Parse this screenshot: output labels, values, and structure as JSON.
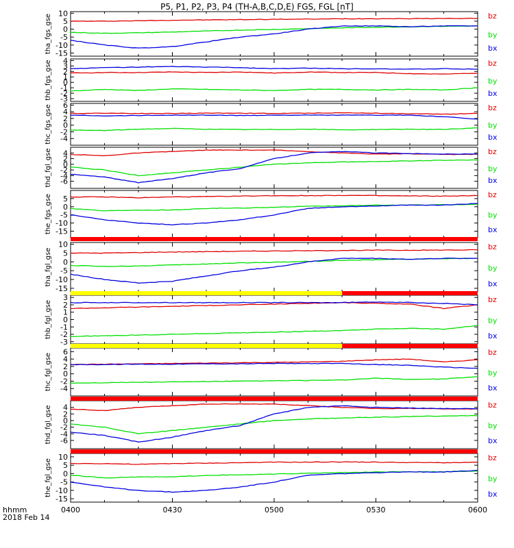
{
  "title": "P5, P1, P2, P3, P4 (TH-A,B,C,D,E) FGS, FGL [nT]",
  "x_axis": {
    "ticks": [
      "0400",
      "0430",
      "0500",
      "0530",
      "0600"
    ],
    "label_line1": "hhmm",
    "label_line2": "2018 Feb 14"
  },
  "colors": {
    "bz": "#e00000",
    "by": "#00e000",
    "bx": "#0000e0",
    "yellow": "#ffff00",
    "red": "#ff0000"
  },
  "chart_data": [
    {
      "type": "line",
      "ylabel": "tha_fgs_gse",
      "ylim": [
        -17,
        11
      ],
      "yticks": [
        "10",
        "5",
        "0",
        "-5",
        "-10",
        "-15"
      ],
      "legend": [
        "bz",
        "by",
        "bx"
      ],
      "x": [
        0,
        10,
        20,
        30,
        40,
        50,
        60,
        70,
        80,
        90,
        100,
        110,
        120
      ],
      "series": [
        {
          "name": "bz",
          "values": [
            5,
            5,
            5.3,
            5.6,
            5.8,
            6,
            6.2,
            6.3,
            6.5,
            6.6,
            6.6,
            6.7,
            6.8
          ]
        },
        {
          "name": "by",
          "values": [
            -2,
            -2.6,
            -2.3,
            -1.8,
            -1.2,
            -0.6,
            -0.2,
            0.3,
            0.8,
            1.2,
            1.5,
            1.8,
            2
          ]
        },
        {
          "name": "bx",
          "values": [
            -7,
            -10,
            -12,
            -11,
            -8,
            -5,
            -3,
            0,
            2,
            2,
            1.5,
            2,
            2
          ]
        }
      ]
    },
    {
      "type": "line",
      "ylabel": "thb_fgs_gse",
      "ylim": [
        -3.5,
        4.3
      ],
      "yticks": [
        "4",
        "3",
        "2",
        "1",
        "0",
        "-1",
        "-2",
        "-3"
      ],
      "legend": [
        "bz",
        "by",
        "bx"
      ],
      "x": [
        0,
        10,
        20,
        30,
        40,
        50,
        60,
        70,
        80,
        90,
        100,
        110,
        120
      ],
      "series": [
        {
          "name": "bz",
          "values": [
            1.7,
            1.8,
            1.8,
            1.9,
            1.8,
            1.9,
            1.7,
            1.9,
            1.8,
            1.8,
            1.6,
            1.5,
            1.7
          ]
        },
        {
          "name": "by",
          "values": [
            -1.6,
            -1.3,
            -1.5,
            -1.2,
            -1.3,
            -1.4,
            -1.5,
            -1.3,
            -1.3,
            -1.4,
            -1.3,
            -1.4,
            -1
          ]
        },
        {
          "name": "bx",
          "values": [
            2.5,
            2.7,
            2.8,
            2.9,
            2.8,
            2.7,
            2.5,
            2.6,
            2.5,
            2.5,
            2.4,
            2.5,
            2.4
          ]
        }
      ]
    },
    {
      "type": "line",
      "ylabel": "thc_fgs_gse",
      "ylim": [
        -6,
        6.5
      ],
      "yticks": [
        "6",
        "4",
        "2",
        "0",
        "-2",
        "-4"
      ],
      "legend": [
        "bz",
        "by",
        "bx"
      ],
      "x": [
        0,
        10,
        20,
        30,
        40,
        50,
        60,
        70,
        80,
        90,
        100,
        110,
        120
      ],
      "series": [
        {
          "name": "bz",
          "values": [
            3.5,
            3.6,
            3.5,
            3.5,
            3.6,
            3.6,
            3.5,
            3.6,
            3.7,
            3.6,
            3.4,
            3.3,
            3.5
          ]
        },
        {
          "name": "by",
          "values": [
            -1.5,
            -1.6,
            -1.2,
            -1.0,
            -1.2,
            -1.3,
            -1.3,
            -1.2,
            -1.4,
            -1.3,
            -1.2,
            -1.3,
            -0.8
          ]
        },
        {
          "name": "bx",
          "values": [
            3.0,
            2.8,
            2.9,
            3.0,
            3.0,
            2.9,
            3.0,
            3.0,
            3.0,
            3.0,
            3.0,
            2.5,
            1.8
          ]
        }
      ]
    },
    {
      "type": "line",
      "ylabel": "thd_fgl_gse",
      "ylim": [
        -8.5,
        6
      ],
      "yticks": [
        "4",
        "2",
        "0",
        "-2",
        "-4",
        "-6"
      ],
      "legend": [
        "bz",
        "by",
        "bx"
      ],
      "x": [
        0,
        10,
        20,
        30,
        40,
        50,
        60,
        70,
        80,
        90,
        100,
        110,
        120
      ],
      "series": [
        {
          "name": "bz",
          "values": [
            3.5,
            3,
            4,
            4.5,
            5,
            5,
            5,
            4.5,
            4,
            3.6,
            3.7,
            3.5,
            3.5
          ]
        },
        {
          "name": "by",
          "values": [
            -1,
            -2,
            -4,
            -3,
            -2,
            -1,
            0,
            0.5,
            0.8,
            1,
            1.2,
            1.4,
            1.5
          ]
        },
        {
          "name": "bx",
          "values": [
            -3.5,
            -4.5,
            -6.5,
            -5,
            -3,
            -1.5,
            2,
            4,
            4.5,
            4,
            3.8,
            3.6,
            3.6
          ]
        }
      ]
    },
    {
      "type": "line",
      "ylabel": "the_fgs_gse",
      "ylim": [
        -19,
        10
      ],
      "yticks": [
        "5",
        "0",
        "-5",
        "-10",
        "-15"
      ],
      "legend": [
        "bz",
        "by",
        "bx"
      ],
      "x": [
        0,
        10,
        20,
        30,
        40,
        50,
        60,
        70,
        80,
        90,
        100,
        110,
        120
      ],
      "series": [
        {
          "name": "bz",
          "values": [
            6,
            6,
            5.5,
            6,
            6.2,
            6.5,
            6.8,
            6.8,
            7,
            6.8,
            6.6,
            6.5,
            6.8
          ]
        },
        {
          "name": "by",
          "values": [
            -1,
            -2.5,
            -2,
            -2,
            -1,
            -0.8,
            -0.3,
            0.2,
            0.6,
            0.9,
            1,
            1.2,
            1.5
          ]
        },
        {
          "name": "bx",
          "values": [
            -5,
            -8,
            -10,
            -11,
            -10,
            -8,
            -5,
            -1,
            0,
            0.5,
            1,
            1,
            2
          ]
        }
      ]
    },
    {
      "type": "line",
      "ylabel": "tha_fgl_gse",
      "ylim": [
        -17,
        11
      ],
      "yticks": [
        "10",
        "5",
        "0",
        "-5",
        "-10",
        "-15"
      ],
      "legend": [
        "bz",
        "by",
        "bx"
      ],
      "x": [
        0,
        10,
        20,
        30,
        40,
        50,
        60,
        70,
        80,
        90,
        100,
        110,
        120
      ],
      "series": [
        {
          "name": "bz",
          "values": [
            5,
            5,
            5.3,
            5.6,
            5.8,
            6,
            6.2,
            6.3,
            6.5,
            6.6,
            6.6,
            6.7,
            6.8
          ]
        },
        {
          "name": "by",
          "values": [
            -2,
            -2.6,
            -2.3,
            -1.8,
            -1.2,
            -0.6,
            -0.2,
            0.3,
            0.8,
            1.2,
            1.5,
            1.8,
            2
          ]
        },
        {
          "name": "bx",
          "values": [
            -7,
            -10,
            -12,
            -11,
            -8,
            -5,
            -3,
            0,
            2,
            2,
            1.5,
            2,
            2
          ]
        }
      ]
    },
    {
      "type": "line",
      "ylabel": "thb_fgl_gse",
      "ylim": [
        -3.3,
        3.3
      ],
      "yticks": [
        "3",
        "2",
        "1",
        "0",
        "-1",
        "-2",
        "-3"
      ],
      "legend": [
        "bz",
        "by",
        "bx"
      ],
      "x": [
        0,
        10,
        20,
        30,
        40,
        50,
        60,
        70,
        80,
        90,
        100,
        110,
        120
      ],
      "series": [
        {
          "name": "bz",
          "values": [
            1.5,
            1.6,
            1.7,
            1.8,
            1.9,
            2,
            2.1,
            2.2,
            2.3,
            2.2,
            2.1,
            1.5,
            2
          ]
        },
        {
          "name": "by",
          "values": [
            -2.3,
            -2.2,
            -2.1,
            -2.0,
            -1.9,
            -1.8,
            -1.7,
            -1.6,
            -1.5,
            -1.3,
            -1.2,
            -1.3,
            -0.8
          ]
        },
        {
          "name": "bx",
          "values": [
            2.3,
            2.3,
            2.3,
            2.3,
            2.3,
            2.3,
            2.3,
            2.3,
            2.3,
            2.4,
            2.3,
            2.2,
            2.0
          ]
        }
      ]
    },
    {
      "type": "line",
      "ylabel": "thc_fgl_gse",
      "ylim": [
        -6,
        7
      ],
      "yticks": [
        "6",
        "4",
        "2",
        "0",
        "-2",
        "-4"
      ],
      "legend": [
        "bz",
        "by",
        "bx"
      ],
      "x": [
        0,
        10,
        20,
        30,
        40,
        50,
        60,
        70,
        80,
        90,
        100,
        110,
        120
      ],
      "series": [
        {
          "name": "bz",
          "values": [
            2.5,
            2.6,
            2.7,
            2.8,
            2.9,
            3.0,
            3.1,
            3.2,
            3.4,
            3.8,
            4.0,
            3.2,
            3.8
          ]
        },
        {
          "name": "by",
          "values": [
            -2.5,
            -2.4,
            -2.3,
            -2.2,
            -2.1,
            -2.0,
            -1.9,
            -1.8,
            -1.7,
            -1.2,
            -1.5,
            -1.4,
            -0.8
          ]
        },
        {
          "name": "bx",
          "values": [
            2.5,
            2.5,
            2.6,
            2.6,
            2.7,
            2.7,
            2.8,
            2.8,
            2.8,
            2.5,
            2.3,
            1.8,
            1.5
          ]
        }
      ]
    },
    {
      "type": "line",
      "ylabel": "thd_fgl_gse",
      "ylim": [
        -8.5,
        6
      ],
      "yticks": [
        "4",
        "2",
        "0",
        "-2",
        "-4",
        "-6"
      ],
      "legend": [
        "bz",
        "by",
        "bx"
      ],
      "x": [
        0,
        10,
        20,
        30,
        40,
        50,
        60,
        70,
        80,
        90,
        100,
        110,
        120
      ],
      "series": [
        {
          "name": "bz",
          "values": [
            3.5,
            3,
            4,
            4.5,
            5,
            5,
            5,
            4.5,
            4,
            3.6,
            3.7,
            3.5,
            3.5
          ]
        },
        {
          "name": "by",
          "values": [
            -1,
            -2,
            -4,
            -3,
            -2,
            -1,
            0,
            0.5,
            0.8,
            1,
            1.2,
            1.4,
            1.5
          ]
        },
        {
          "name": "bx",
          "values": [
            -3.5,
            -4.5,
            -6.5,
            -5,
            -3,
            -1.5,
            2,
            4,
            4.5,
            4,
            3.8,
            3.6,
            3.6
          ]
        }
      ]
    },
    {
      "type": "line",
      "ylabel": "the_fgl_gse",
      "ylim": [
        -17,
        12
      ],
      "yticks": [
        "10",
        "5",
        "0",
        "-5",
        "-10",
        "-15"
      ],
      "legend": [
        "bz",
        "by",
        "bx"
      ],
      "x": [
        0,
        10,
        20,
        30,
        40,
        50,
        60,
        70,
        80,
        90,
        100,
        110,
        120
      ],
      "series": [
        {
          "name": "bz",
          "values": [
            6,
            6,
            5.5,
            6,
            6.2,
            6.5,
            6.8,
            6.8,
            7,
            6.8,
            6.6,
            6.5,
            6.8
          ]
        },
        {
          "name": "by",
          "values": [
            -1,
            -2.5,
            -2,
            -2,
            -1,
            -0.8,
            -0.3,
            0.2,
            0.6,
            0.9,
            1,
            1.2,
            1.5
          ]
        },
        {
          "name": "bx",
          "values": [
            -5,
            -8,
            -10,
            -11,
            -10,
            -8,
            -5,
            -1,
            0,
            0.5,
            1,
            1,
            2
          ]
        }
      ]
    }
  ]
}
